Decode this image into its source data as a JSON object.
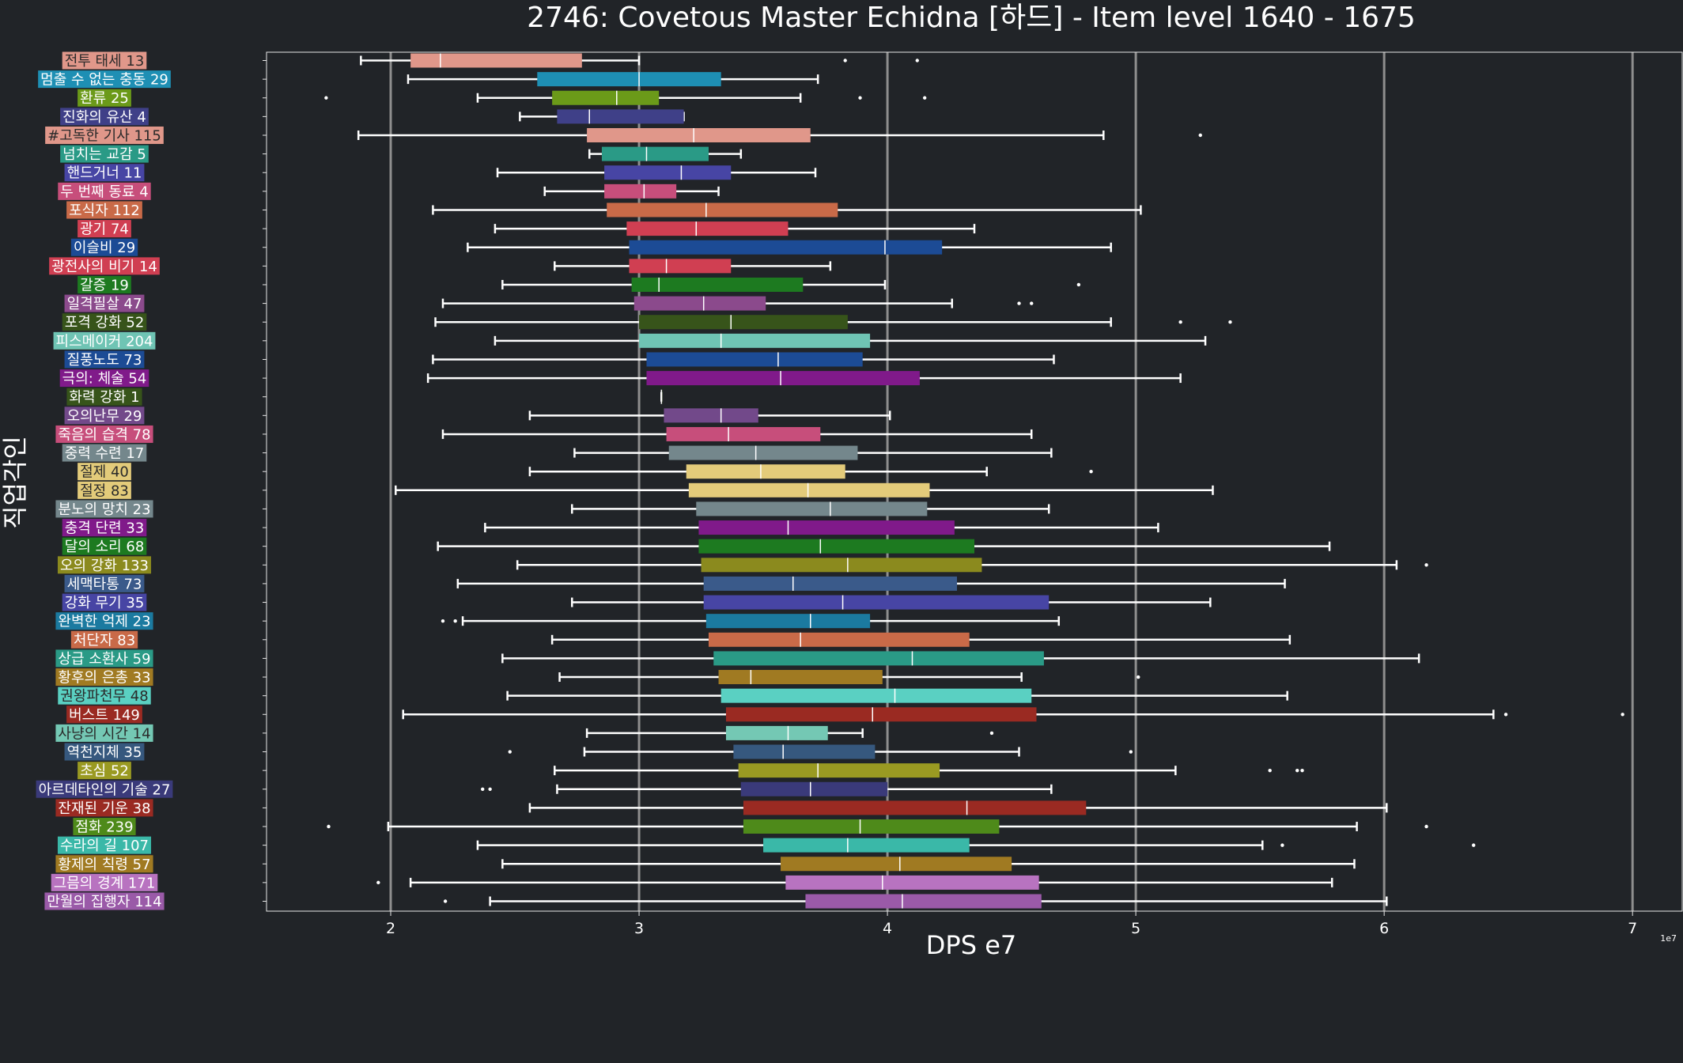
{
  "chart_data": {
    "type": "box",
    "orientation": "horizontal",
    "title": "2746: Covetous Master Echidna [하드] - Item level 1640 - 1675",
    "xlabel": "DPS e7",
    "ylabel": "직업각인",
    "offset_text": "1e7",
    "x_unit": 10000000,
    "xlim": [
      1.5,
      7.2
    ],
    "xticks": [
      2,
      3,
      4,
      5,
      6,
      7
    ],
    "grid": "vertical major gridlines",
    "legend": "none",
    "series": [
      {
        "label": "전투 태세 13",
        "color": "#e0978a",
        "whisker_low": 1.88,
        "q1": 2.08,
        "median": 2.2,
        "q3": 2.77,
        "whisker_high": 3.0,
        "outliers": [
          3.83,
          4.12
        ]
      },
      {
        "label": "멈출 수 없는 충동 29",
        "color": "#1e8fb4",
        "whisker_low": 2.07,
        "q1": 2.59,
        "median": 3.0,
        "q3": 3.33,
        "whisker_high": 3.72,
        "outliers": []
      },
      {
        "label": "환류 25",
        "color": "#6b9a19",
        "whisker_low": 2.35,
        "q1": 2.65,
        "median": 2.91,
        "q3": 3.08,
        "whisker_high": 3.65,
        "outliers": [
          1.74,
          3.89,
          4.15
        ]
      },
      {
        "label": "진화의 유산 4",
        "color": "#3f4088",
        "whisker_low": 2.52,
        "q1": 2.67,
        "median": 2.8,
        "q3": 3.18,
        "whisker_high": 3.18,
        "outliers": []
      },
      {
        "label": "#고독한 기사 115",
        "color": "#e0978a",
        "whisker_low": 1.87,
        "q1": 2.79,
        "median": 3.22,
        "q3": 3.69,
        "whisker_high": 4.87,
        "outliers": [
          5.26
        ]
      },
      {
        "label": "넘치는 교감 5",
        "color": "#2a9a86",
        "whisker_low": 2.8,
        "q1": 2.85,
        "median": 3.03,
        "q3": 3.28,
        "whisker_high": 3.41,
        "outliers": []
      },
      {
        "label": "핸드거너 11",
        "color": "#4745a4",
        "whisker_low": 2.43,
        "q1": 2.86,
        "median": 3.17,
        "q3": 3.37,
        "whisker_high": 3.71,
        "outliers": []
      },
      {
        "label": "두 번째 동료 4",
        "color": "#c74e7b",
        "whisker_low": 2.62,
        "q1": 2.86,
        "median": 3.02,
        "q3": 3.15,
        "whisker_high": 3.32,
        "outliers": []
      },
      {
        "label": "포식자 112",
        "color": "#c96a48",
        "whisker_low": 2.17,
        "q1": 2.87,
        "median": 3.27,
        "q3": 3.8,
        "whisker_high": 5.02,
        "outliers": []
      },
      {
        "label": "광기 74",
        "color": "#d03f52",
        "whisker_low": 2.42,
        "q1": 2.95,
        "median": 3.23,
        "q3": 3.6,
        "whisker_high": 4.35,
        "outliers": []
      },
      {
        "label": "이슬비 29",
        "color": "#1c4b95",
        "whisker_low": 2.31,
        "q1": 2.96,
        "median": 3.99,
        "q3": 4.22,
        "whisker_high": 4.9,
        "outliers": []
      },
      {
        "label": "광전사의 비기 14",
        "color": "#d03f52",
        "whisker_low": 2.66,
        "q1": 2.96,
        "median": 3.11,
        "q3": 3.37,
        "whisker_high": 3.77,
        "outliers": []
      },
      {
        "label": "갈증 19",
        "color": "#1d7a20",
        "whisker_low": 2.45,
        "q1": 2.97,
        "median": 3.08,
        "q3": 3.66,
        "whisker_high": 3.99,
        "outliers": [
          4.77
        ]
      },
      {
        "label": "일격필살 47",
        "color": "#8b4a8c",
        "whisker_low": 2.21,
        "q1": 2.98,
        "median": 3.26,
        "q3": 3.51,
        "whisker_high": 4.26,
        "outliers": [
          4.53,
          4.58
        ]
      },
      {
        "label": "포격 강화 52",
        "color": "#37541a",
        "whisker_low": 2.18,
        "q1": 3.0,
        "median": 3.37,
        "q3": 3.84,
        "whisker_high": 4.9,
        "outliers": [
          5.18,
          5.38
        ]
      },
      {
        "label": "피스메이커 204",
        "color": "#6fc4b4",
        "whisker_low": 2.42,
        "q1": 3.0,
        "median": 3.33,
        "q3": 3.93,
        "whisker_high": 5.28,
        "outliers": []
      },
      {
        "label": "질풍노도 73",
        "color": "#1c4b95",
        "whisker_low": 2.17,
        "q1": 3.03,
        "median": 3.56,
        "q3": 3.9,
        "whisker_high": 4.67,
        "outliers": []
      },
      {
        "label": "극의: 체술 54",
        "color": "#801a8a",
        "whisker_low": 2.15,
        "q1": 3.03,
        "median": 3.57,
        "q3": 4.13,
        "whisker_high": 5.18,
        "outliers": []
      },
      {
        "label": "화력 강화 1",
        "color": "#37541a",
        "whisker_low": 3.09,
        "q1": 3.09,
        "median": 3.09,
        "q3": 3.09,
        "whisker_high": 3.09,
        "outliers": []
      },
      {
        "label": "오의난무 29",
        "color": "#72498a",
        "whisker_low": 2.56,
        "q1": 3.1,
        "median": 3.33,
        "q3": 3.48,
        "whisker_high": 4.01,
        "outliers": []
      },
      {
        "label": "죽음의 습격 78",
        "color": "#c74e7b",
        "whisker_low": 2.21,
        "q1": 3.11,
        "median": 3.36,
        "q3": 3.73,
        "whisker_high": 4.58,
        "outliers": []
      },
      {
        "label": "중력 수련 17",
        "color": "#74878c",
        "whisker_low": 2.74,
        "q1": 3.12,
        "median": 3.47,
        "q3": 3.88,
        "whisker_high": 4.66,
        "outliers": []
      },
      {
        "label": "절제 40",
        "color": "#e3cb7a",
        "whisker_low": 2.56,
        "q1": 3.19,
        "median": 3.49,
        "q3": 3.83,
        "whisker_high": 4.4,
        "outliers": [
          4.82
        ]
      },
      {
        "label": "절정 83",
        "color": "#e3cb7a",
        "whisker_low": 2.02,
        "q1": 3.2,
        "median": 3.68,
        "q3": 4.17,
        "whisker_high": 5.31,
        "outliers": []
      },
      {
        "label": "분노의 망치 23",
        "color": "#74878c",
        "whisker_low": 2.73,
        "q1": 3.23,
        "median": 3.77,
        "q3": 4.16,
        "whisker_high": 4.65,
        "outliers": []
      },
      {
        "label": "충격 단련 33",
        "color": "#801a8a",
        "whisker_low": 2.38,
        "q1": 3.24,
        "median": 3.6,
        "q3": 4.27,
        "whisker_high": 5.09,
        "outliers": []
      },
      {
        "label": "달의 소리 68",
        "color": "#1d7a20",
        "whisker_low": 2.19,
        "q1": 3.24,
        "median": 3.73,
        "q3": 4.35,
        "whisker_high": 5.78,
        "outliers": []
      },
      {
        "label": "오의 강화 133",
        "color": "#8b8a1e",
        "whisker_low": 2.51,
        "q1": 3.25,
        "median": 3.84,
        "q3": 4.38,
        "whisker_high": 6.05,
        "outliers": [
          6.17
        ]
      },
      {
        "label": "세맥타통 73",
        "color": "#3a5a8a",
        "whisker_low": 2.27,
        "q1": 3.26,
        "median": 3.62,
        "q3": 4.28,
        "whisker_high": 5.6,
        "outliers": []
      },
      {
        "label": "강화 무기 35",
        "color": "#4745a4",
        "whisker_low": 2.73,
        "q1": 3.26,
        "median": 3.82,
        "q3": 4.65,
        "whisker_high": 5.3,
        "outliers": []
      },
      {
        "label": "완벽한 억제 23",
        "color": "#1b7aa0",
        "whisker_low": 2.29,
        "q1": 3.27,
        "median": 3.69,
        "q3": 3.93,
        "whisker_high": 4.69,
        "outliers": [
          2.21,
          2.26
        ]
      },
      {
        "label": "처단자 83",
        "color": "#c96a48",
        "whisker_low": 2.65,
        "q1": 3.28,
        "median": 3.65,
        "q3": 4.33,
        "whisker_high": 5.62,
        "outliers": []
      },
      {
        "label": "상급 소환사 59",
        "color": "#2a9a86",
        "whisker_low": 2.45,
        "q1": 3.3,
        "median": 4.1,
        "q3": 4.63,
        "whisker_high": 6.14,
        "outliers": []
      },
      {
        "label": "황후의 은총 33",
        "color": "#a07a22",
        "whisker_low": 2.68,
        "q1": 3.32,
        "median": 3.45,
        "q3": 3.98,
        "whisker_high": 4.54,
        "outliers": [
          5.01
        ]
      },
      {
        "label": "권왕파천무 48",
        "color": "#5ad0c2",
        "whisker_low": 2.47,
        "q1": 3.33,
        "median": 4.03,
        "q3": 4.58,
        "whisker_high": 5.61,
        "outliers": []
      },
      {
        "label": "버스트 149",
        "color": "#9a2a22",
        "whisker_low": 2.05,
        "q1": 3.35,
        "median": 3.94,
        "q3": 4.6,
        "whisker_high": 6.44,
        "outliers": [
          6.49,
          6.96
        ]
      },
      {
        "label": "사냥의 시간 14",
        "color": "#74c8b4",
        "whisker_low": 2.79,
        "q1": 3.35,
        "median": 3.6,
        "q3": 3.76,
        "whisker_high": 3.9,
        "outliers": [
          4.42
        ]
      },
      {
        "label": "역천지체 35",
        "color": "#36587e",
        "whisker_low": 2.78,
        "q1": 3.38,
        "median": 3.58,
        "q3": 3.95,
        "whisker_high": 4.53,
        "outliers": [
          2.48,
          4.98
        ]
      },
      {
        "label": "초심 52",
        "color": "#9a9a22",
        "whisker_low": 2.66,
        "q1": 3.4,
        "median": 3.72,
        "q3": 4.21,
        "whisker_high": 5.16,
        "outliers": [
          5.54,
          5.65,
          5.67
        ]
      },
      {
        "label": "아르데타인의 기술 27",
        "color": "#3a3a7a",
        "whisker_low": 2.67,
        "q1": 3.41,
        "median": 3.69,
        "q3": 4.0,
        "whisker_high": 4.66,
        "outliers": [
          2.37,
          2.4
        ]
      },
      {
        "label": "잔재된 기운 38",
        "color": "#9a2a22",
        "whisker_low": 2.56,
        "q1": 3.42,
        "median": 4.32,
        "q3": 4.8,
        "whisker_high": 6.01,
        "outliers": []
      },
      {
        "label": "점화 239",
        "color": "#4e8a1a",
        "whisker_low": 1.99,
        "q1": 3.42,
        "median": 3.89,
        "q3": 4.45,
        "whisker_high": 5.89,
        "outliers": [
          1.75,
          6.17
        ]
      },
      {
        "label": "수라의 길 107",
        "color": "#3ab8a8",
        "whisker_low": 2.35,
        "q1": 3.5,
        "median": 3.84,
        "q3": 4.33,
        "whisker_high": 5.51,
        "outliers": [
          5.59,
          6.36
        ]
      },
      {
        "label": "황제의 칙령 57",
        "color": "#a07a22",
        "whisker_low": 2.45,
        "q1": 3.57,
        "median": 4.05,
        "q3": 4.5,
        "whisker_high": 5.88,
        "outliers": []
      },
      {
        "label": "그믐의 경계 171",
        "color": "#b873c0",
        "whisker_low": 2.08,
        "q1": 3.59,
        "median": 3.98,
        "q3": 4.61,
        "whisker_high": 5.79,
        "outliers": [
          1.95
        ]
      },
      {
        "label": "만월의 집행자 114",
        "color": "#9a5aa8",
        "whisker_low": 2.4,
        "q1": 3.67,
        "median": 4.06,
        "q3": 4.62,
        "whisker_high": 6.01,
        "outliers": [
          2.22
        ]
      }
    ]
  }
}
